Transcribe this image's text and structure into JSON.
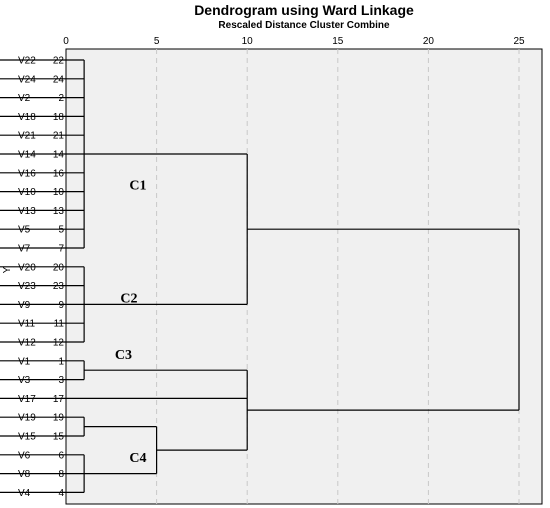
{
  "chart_data": {
    "type": "dendrogram",
    "title": "Dendrogram using Ward Linkage",
    "xlabel": "Rescaled Distance Cluster Combine",
    "ylabel": "Y",
    "xlim": [
      0,
      25
    ],
    "xticks": [
      0,
      5,
      10,
      15,
      20,
      25
    ],
    "grid": true,
    "leaves": [
      {
        "name": "V22",
        "id": "22"
      },
      {
        "name": "V24",
        "id": "24"
      },
      {
        "name": "V2",
        "id": "2"
      },
      {
        "name": "V18",
        "id": "18"
      },
      {
        "name": "V21",
        "id": "21"
      },
      {
        "name": "V14",
        "id": "14"
      },
      {
        "name": "V16",
        "id": "16"
      },
      {
        "name": "V10",
        "id": "10"
      },
      {
        "name": "V13",
        "id": "13"
      },
      {
        "name": "V5",
        "id": "5"
      },
      {
        "name": "V7",
        "id": "7"
      },
      {
        "name": "V20",
        "id": "20"
      },
      {
        "name": "V23",
        "id": "23"
      },
      {
        "name": "V9",
        "id": "9"
      },
      {
        "name": "V11",
        "id": "11"
      },
      {
        "name": "V12",
        "id": "12"
      },
      {
        "name": "V1",
        "id": "1"
      },
      {
        "name": "V3",
        "id": "3"
      },
      {
        "name": "V17",
        "id": "17"
      },
      {
        "name": "V19",
        "id": "19"
      },
      {
        "name": "V15",
        "id": "15"
      },
      {
        "name": "V6",
        "id": "6"
      },
      {
        "name": "V8",
        "id": "8"
      },
      {
        "name": "V4",
        "id": "4"
      }
    ],
    "merges": [
      {
        "id": "C1",
        "children": [
          0,
          1,
          2,
          3,
          4,
          5,
          6,
          7,
          8,
          9,
          10
        ],
        "distance": 1
      },
      {
        "id": "C2",
        "children": [
          11,
          12,
          13,
          14,
          15
        ],
        "distance": 1
      },
      {
        "id": "C3",
        "children": [
          16,
          17
        ],
        "distance": 1
      },
      {
        "id": "M4",
        "children": [
          19,
          20
        ],
        "distance": 1
      },
      {
        "id": "M5",
        "children": [
          21,
          22,
          23
        ],
        "distance": 1
      },
      {
        "id": "C4",
        "children": [
          "M4",
          "M5"
        ],
        "distance": 5
      },
      {
        "id": "M7",
        "children": [
          "C3",
          18,
          "C4"
        ],
        "distance": 10
      },
      {
        "id": "M8",
        "children": [
          "C1",
          "C2"
        ],
        "distance": 10
      },
      {
        "id": "M9",
        "children": [
          "M8",
          "M7"
        ],
        "distance": 25
      }
    ],
    "annotations": [
      {
        "text": "C1",
        "x": 3.5,
        "row": 7
      },
      {
        "text": "C2",
        "x": 3.0,
        "row": 13
      },
      {
        "text": "C3",
        "x": 2.7,
        "row": 16
      },
      {
        "text": "C4",
        "x": 3.5,
        "row": 21.5
      }
    ]
  }
}
